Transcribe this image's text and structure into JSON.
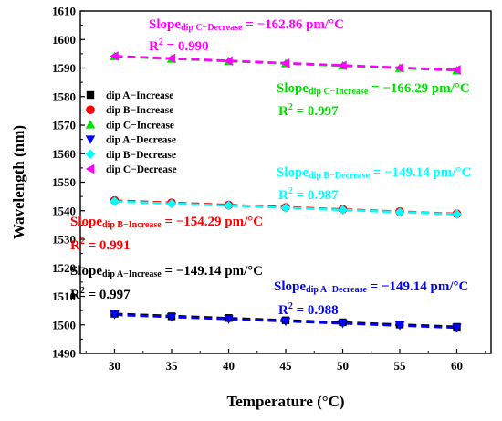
{
  "chart_data": {
    "type": "scatter",
    "xlabel": "Temperature (°C)",
    "ylabel": "Wavelength (nm)",
    "xlim": [
      27,
      63
    ],
    "ylim": [
      1490,
      1610
    ],
    "xticks": [
      30,
      35,
      40,
      45,
      50,
      55,
      60
    ],
    "yticks": [
      1490,
      1500,
      1510,
      1520,
      1530,
      1540,
      1550,
      1560,
      1570,
      1580,
      1590,
      1600,
      1610
    ],
    "grid": false,
    "legend_position": "left-middle",
    "x": [
      30,
      35,
      40,
      45,
      50,
      55,
      60
    ],
    "series": [
      {
        "name": "dip A−Increase",
        "marker": "square",
        "color": "#000000",
        "values": [
          1503.9,
          1503.0,
          1502.4,
          1501.6,
          1500.9,
          1500.1,
          1499.3
        ]
      },
      {
        "name": "dip B−Increase",
        "marker": "circle",
        "color": "#ff0000",
        "values": [
          1543.6,
          1542.8,
          1542.0,
          1541.2,
          1540.5,
          1539.7,
          1538.9
        ]
      },
      {
        "name": "dip C−Increase",
        "marker": "triangle-up",
        "color": "#00e000",
        "values": [
          1594.1,
          1593.2,
          1592.4,
          1591.6,
          1590.8,
          1590.0,
          1589.1
        ]
      },
      {
        "name": "dip A−Decrease",
        "marker": "triangle-down",
        "color": "#0000ff",
        "values": [
          1503.6,
          1502.7,
          1502.0,
          1501.2,
          1500.5,
          1499.8,
          1499.0
        ]
      },
      {
        "name": "dip B−Decrease",
        "marker": "diamond",
        "color": "#00ffff",
        "values": [
          1543.3,
          1542.5,
          1541.8,
          1541.0,
          1540.3,
          1539.5,
          1538.8
        ]
      },
      {
        "name": "dip C−Decrease",
        "marker": "triangle-left",
        "color": "#ff00ff",
        "values": [
          1594.2,
          1593.4,
          1592.5,
          1591.7,
          1590.9,
          1590.1,
          1589.4
        ]
      }
    ],
    "annotations": [
      {
        "slope_prefix": "Slope",
        "slope_sub": "dip C−Decrease",
        "slope_value": " = −162.86 pm/°C",
        "r2_prefix": "R",
        "r2_exp": "2",
        "r2_value": " = 0.990",
        "color": "#ff00ff"
      },
      {
        "slope_prefix": "Slope",
        "slope_sub": "dip C−Increase",
        "slope_value": " = −166.29 pm/°C",
        "r2_prefix": "R",
        "r2_exp": "2",
        "r2_value": " = 0.997",
        "color": "#00e000"
      },
      {
        "slope_prefix": "Slope",
        "slope_sub": "dip B−Decrease",
        "slope_value": " = −149.14 pm/°C",
        "r2_prefix": "R",
        "r2_exp": "2",
        "r2_value": " = 0.987",
        "color": "#00ffff"
      },
      {
        "slope_prefix": "Slope",
        "slope_sub": "dip B−Increase",
        "slope_value": " = −154.29 pm/°C",
        "r2_prefix": "R",
        "r2_exp": "2",
        "r2_value": " = 0.991",
        "color": "#ff0000"
      },
      {
        "slope_prefix": "Slope",
        "slope_sub": "dip A−Increase",
        "slope_value": " = −149.14 pm/°C",
        "r2_prefix": "R",
        "r2_exp": "2",
        "r2_value": " = 0.997",
        "color": "#000000"
      },
      {
        "slope_prefix": "Slope",
        "slope_sub": "dip A−Decrease",
        "slope_value": " = −149.14 pm/°C",
        "r2_prefix": "R",
        "r2_exp": "2",
        "r2_value": " = 0.988",
        "color": "#0000ff"
      }
    ]
  }
}
